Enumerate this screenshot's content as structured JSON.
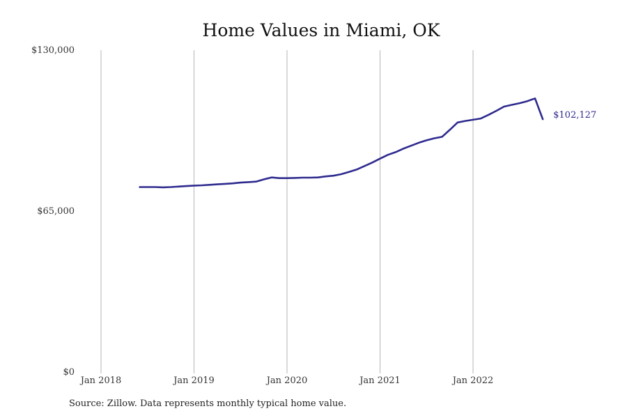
{
  "chart_data": {
    "type": "line",
    "title": "Home Values in Miami, OK",
    "xlabel": "",
    "ylabel": "",
    "ylim": [
      0,
      130000
    ],
    "y_ticks": [
      {
        "value": 0,
        "label": "$0"
      },
      {
        "value": 65000,
        "label": "$65,000"
      },
      {
        "value": 130000,
        "label": "$130,000"
      }
    ],
    "x_ticks": [
      {
        "date": "2018-01",
        "label": "Jan 2018"
      },
      {
        "date": "2019-01",
        "label": "Jan 2019"
      },
      {
        "date": "2020-01",
        "label": "Jan 2020"
      },
      {
        "date": "2021-01",
        "label": "Jan 2021"
      },
      {
        "date": "2022-01",
        "label": "Jan 2022"
      }
    ],
    "vertical_grid": true,
    "line_color": "#2e2a8e",
    "series": [
      {
        "x": [
          "2018-06",
          "2018-07",
          "2018-08",
          "2018-09",
          "2018-10",
          "2018-11",
          "2018-12",
          "2019-01",
          "2019-02",
          "2019-03",
          "2019-04",
          "2019-05",
          "2019-06",
          "2019-07",
          "2019-08",
          "2019-09",
          "2019-10",
          "2019-11",
          "2019-12",
          "2020-01",
          "2020-02",
          "2020-03",
          "2020-04",
          "2020-05",
          "2020-06",
          "2020-07",
          "2020-08",
          "2020-09",
          "2020-10",
          "2020-11",
          "2020-12",
          "2021-01",
          "2021-02",
          "2021-03",
          "2021-04",
          "2021-05",
          "2021-06",
          "2021-07",
          "2021-08",
          "2021-09",
          "2021-10",
          "2021-11",
          "2021-12",
          "2022-01",
          "2022-02",
          "2022-03",
          "2022-04",
          "2022-05",
          "2022-06",
          "2022-07",
          "2022-08",
          "2022-09",
          "2022-10"
        ],
        "values": [
          74700,
          74700,
          74700,
          74600,
          74700,
          74900,
          75100,
          75300,
          75400,
          75600,
          75800,
          76000,
          76200,
          76500,
          76700,
          76900,
          77800,
          78600,
          78300,
          78300,
          78400,
          78500,
          78500,
          78600,
          79000,
          79300,
          79900,
          80800,
          81800,
          83200,
          84600,
          86200,
          87700,
          88800,
          90200,
          91400,
          92600,
          93600,
          94400,
          95000,
          97800,
          100800,
          101400,
          101900,
          102400,
          103900,
          105500,
          107200,
          107900,
          108600,
          109400,
          110500,
          102127
        ],
        "end_label": "$102,127"
      }
    ]
  },
  "footer": {
    "source": "Source: Zillow. Data represents monthly typical home value."
  }
}
